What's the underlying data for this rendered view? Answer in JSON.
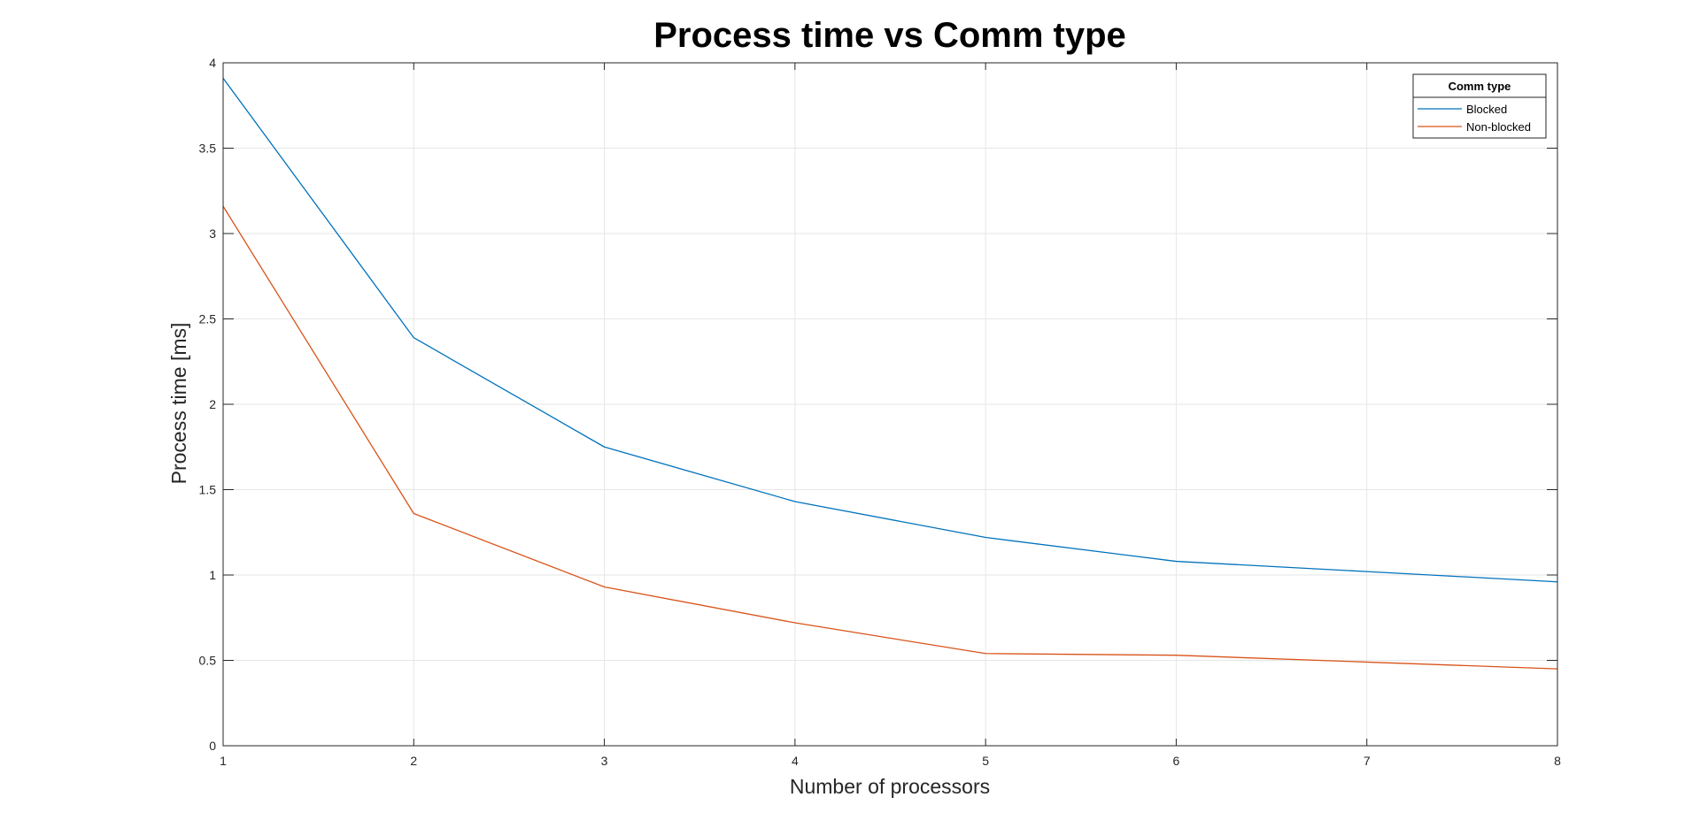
{
  "chart_data": {
    "type": "line",
    "title": "Process time vs Comm type",
    "xlabel": "Number of processors",
    "ylabel": "Process time [ms]",
    "x": [
      1,
      2,
      3,
      4,
      5,
      6,
      7,
      8
    ],
    "xlim": [
      1,
      8
    ],
    "ylim": [
      0,
      4
    ],
    "xticks": [
      1,
      2,
      3,
      4,
      5,
      6,
      7,
      8
    ],
    "yticks": [
      0,
      0.5,
      1,
      1.5,
      2,
      2.5,
      3,
      3.5,
      4
    ],
    "xtick_labels": [
      "1",
      "2",
      "3",
      "4",
      "5",
      "6",
      "7",
      "8"
    ],
    "ytick_labels": [
      "0",
      "0.5",
      "1",
      "1.5",
      "2",
      "2.5",
      "3",
      "3.5",
      "4"
    ],
    "grid": true,
    "legend": {
      "title": "Comm type",
      "placement": "top-right"
    },
    "series": [
      {
        "name": "Blocked",
        "color": "#0072BD",
        "values": [
          3.91,
          2.39,
          1.75,
          1.43,
          1.22,
          1.08,
          1.02,
          0.96
        ]
      },
      {
        "name": "Non-blocked",
        "color": "#D95319",
        "values": [
          3.16,
          1.36,
          0.93,
          0.72,
          0.54,
          0.53,
          0.49,
          0.45
        ]
      }
    ]
  }
}
